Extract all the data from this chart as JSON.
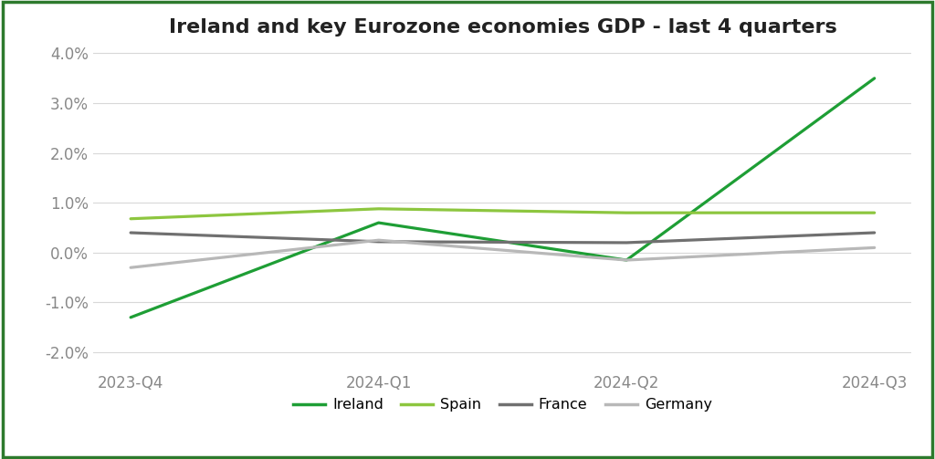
{
  "title": "Ireland and key Eurozone economies GDP - last 4 quarters",
  "categories": [
    "2023-Q4",
    "2024-Q1",
    "2024-Q2",
    "2024-Q3"
  ],
  "series": {
    "Ireland": [
      -1.3,
      0.6,
      -0.15,
      3.5
    ],
    "Spain": [
      0.68,
      0.88,
      0.8,
      0.8
    ],
    "France": [
      0.4,
      0.22,
      0.2,
      0.4
    ],
    "Germany": [
      -0.3,
      0.25,
      -0.15,
      0.1
    ]
  },
  "colors": {
    "Ireland": "#1e9e35",
    "Spain": "#8dc63f",
    "France": "#707070",
    "Germany": "#b8b8b8"
  },
  "ylim": [
    -2.3,
    4.15
  ],
  "yticks": [
    -2.0,
    -1.0,
    0.0,
    1.0,
    2.0,
    3.0,
    4.0
  ],
  "line_width": 2.3,
  "background_color": "#ffffff",
  "plot_bg_color": "#ffffff",
  "grid_color": "#d8d8d8",
  "border_color": "#2d7a2d",
  "title_fontsize": 16,
  "legend_fontsize": 11.5,
  "tick_fontsize": 12,
  "tick_color": "#888888"
}
